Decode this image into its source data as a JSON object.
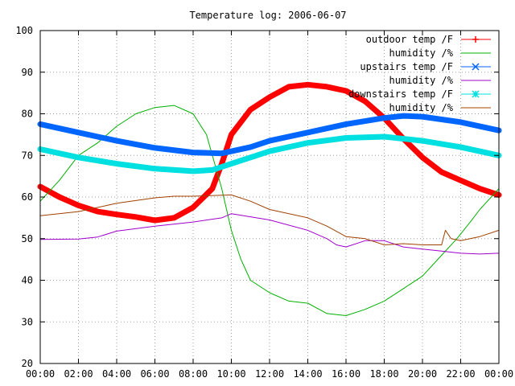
{
  "chart_data": {
    "type": "line",
    "title": "Temperature log: 2006-06-07",
    "xlabel": "",
    "ylabel": "",
    "xlim": [
      0,
      24
    ],
    "ylim": [
      20,
      100
    ],
    "grid": true,
    "legend_position": "top-right",
    "x_tick_labels": [
      "00:00",
      "02:00",
      "04:00",
      "06:00",
      "08:00",
      "10:00",
      "12:00",
      "14:00",
      "16:00",
      "18:00",
      "20:00",
      "22:00",
      "00:00"
    ],
    "y_ticks": [
      20,
      30,
      40,
      50,
      60,
      70,
      80,
      90,
      100
    ],
    "series": [
      {
        "name": "outdoor temp /F",
        "color": "#ff0000",
        "marker": "plus",
        "points": [
          [
            0,
            62.5
          ],
          [
            1,
            60
          ],
          [
            2,
            58
          ],
          [
            3,
            56.5
          ],
          [
            4,
            55.8
          ],
          [
            5,
            55.2
          ],
          [
            6,
            54.4
          ],
          [
            7,
            55
          ],
          [
            8,
            57.5
          ],
          [
            9,
            62
          ],
          [
            9.5,
            68
          ],
          [
            10,
            75
          ],
          [
            11,
            81
          ],
          [
            12,
            84
          ],
          [
            13,
            86.5
          ],
          [
            14,
            87
          ],
          [
            15,
            86.5
          ],
          [
            16,
            85.5
          ],
          [
            17,
            83
          ],
          [
            18,
            79
          ],
          [
            19,
            74
          ],
          [
            20,
            69.5
          ],
          [
            21,
            66
          ],
          [
            22,
            64
          ],
          [
            23,
            62
          ],
          [
            24,
            60.5
          ]
        ]
      },
      {
        "name": "humidity /%",
        "color": "#00b000",
        "marker": "none",
        "points": [
          [
            0,
            59
          ],
          [
            1,
            64
          ],
          [
            2,
            70
          ],
          [
            3,
            73
          ],
          [
            4,
            77
          ],
          [
            5,
            80
          ],
          [
            6,
            81.5
          ],
          [
            7,
            82
          ],
          [
            8,
            80
          ],
          [
            8.7,
            75
          ],
          [
            9.5,
            62
          ],
          [
            10,
            52
          ],
          [
            10.5,
            45
          ],
          [
            11,
            40
          ],
          [
            12,
            37
          ],
          [
            13,
            35
          ],
          [
            14,
            34.5
          ],
          [
            15,
            32
          ],
          [
            16,
            31.5
          ],
          [
            17,
            33
          ],
          [
            18,
            35
          ],
          [
            19,
            38
          ],
          [
            20,
            41
          ],
          [
            21,
            46
          ],
          [
            21.8,
            50
          ],
          [
            22.5,
            54
          ],
          [
            23,
            57
          ],
          [
            24,
            62
          ]
        ]
      },
      {
        "name": "upstairs temp /F",
        "color": "#0066ff",
        "marker": "x",
        "points": [
          [
            0,
            77.5
          ],
          [
            2,
            75.5
          ],
          [
            4,
            73.5
          ],
          [
            6,
            71.8
          ],
          [
            8,
            70.7
          ],
          [
            9.5,
            70.5
          ],
          [
            11,
            72
          ],
          [
            12,
            73.5
          ],
          [
            14,
            75.5
          ],
          [
            16,
            77.5
          ],
          [
            18,
            79
          ],
          [
            19,
            79.5
          ],
          [
            20,
            79.3
          ],
          [
            22,
            78
          ],
          [
            24,
            76
          ]
        ]
      },
      {
        "name": "humidity /%",
        "color": "#a000cc",
        "marker": "none",
        "points": [
          [
            0,
            49.8
          ],
          [
            2,
            49.9
          ],
          [
            3,
            50.4
          ],
          [
            4,
            51.8
          ],
          [
            6,
            53
          ],
          [
            8,
            54
          ],
          [
            9.5,
            55
          ],
          [
            10,
            56
          ],
          [
            12,
            54.5
          ],
          [
            14,
            52
          ],
          [
            15,
            50
          ],
          [
            15.5,
            48.5
          ],
          [
            16,
            48
          ],
          [
            17,
            49.5
          ],
          [
            18,
            49.5
          ],
          [
            19,
            48
          ],
          [
            20,
            47.5
          ],
          [
            21,
            47
          ],
          [
            22,
            46.5
          ],
          [
            23,
            46.3
          ],
          [
            24,
            46.5
          ]
        ]
      },
      {
        "name": "downstairs temp /F",
        "color": "#00e0e0",
        "marker": "star",
        "points": [
          [
            0,
            71.5
          ],
          [
            2,
            69.5
          ],
          [
            4,
            68
          ],
          [
            6,
            66.8
          ],
          [
            8,
            66.2
          ],
          [
            9,
            66.5
          ],
          [
            10,
            68
          ],
          [
            12,
            71
          ],
          [
            14,
            73
          ],
          [
            16,
            74.2
          ],
          [
            18,
            74.5
          ],
          [
            20,
            73.5
          ],
          [
            22,
            72
          ],
          [
            24,
            70
          ]
        ]
      },
      {
        "name": "humidity /%",
        "color": "#a04000",
        "marker": "none",
        "points": [
          [
            0,
            55.5
          ],
          [
            2,
            56.5
          ],
          [
            4,
            58.5
          ],
          [
            6,
            59.8
          ],
          [
            7,
            60.2
          ],
          [
            8,
            60.2
          ],
          [
            10,
            60.5
          ],
          [
            11,
            59
          ],
          [
            12,
            57
          ],
          [
            14,
            55
          ],
          [
            15,
            53
          ],
          [
            16,
            50.5
          ],
          [
            17,
            50
          ],
          [
            18,
            48.5
          ],
          [
            19,
            48.8
          ],
          [
            20,
            48.5
          ],
          [
            21,
            48.5
          ],
          [
            21.2,
            52
          ],
          [
            21.5,
            50
          ],
          [
            22,
            49.5
          ],
          [
            23,
            50.5
          ],
          [
            24,
            52
          ]
        ]
      }
    ]
  }
}
